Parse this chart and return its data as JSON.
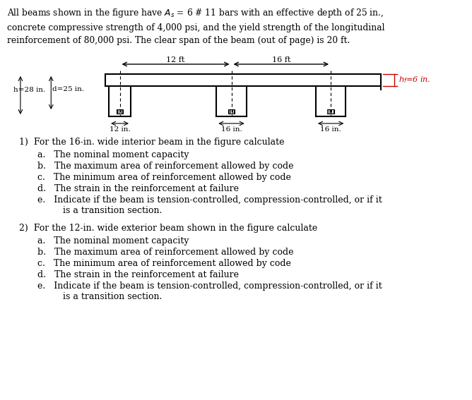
{
  "title_text": "All beams shown in the figure have $A_s$ = 6 # 11 bars with an effective depth of 25 in.,\nconcrete compressive strength of 4,000 psi, and the yield strength of the longitudinal\nreinforcement of 80,000 psi. The clear span of the beam (out of page) is 20 ft.",
  "bg_color": "#ffffff",
  "text_color": "#000000",
  "diagram": {
    "beam_color": "#000000",
    "rebar_color": "#555555"
  },
  "q1_text": "1)  For the 16-in. wide interior beam in the figure calculate",
  "q1_items": [
    "a.   The nominal moment capacity",
    "b.   The maximum area of reinforcement allowed by code",
    "c.   The minimum area of reinforcement allowed by code",
    "d.   The strain in the reinforcement at failure",
    "e.   Indicate if the beam is tension-controlled, compression-controlled, or if it\n         is a transition section."
  ],
  "q2_text": "2)  For the 12-in. wide exterior beam shown in the figure calculate",
  "q2_items": [
    "a.   The nominal moment capacity",
    "b.   The maximum area of reinforcement allowed by code",
    "c.   The minimum area of reinforcement allowed by code",
    "d.   The strain in the reinforcement at failure",
    "e.   Indicate if the beam is tension-controlled, compression-controlled, or if it\n         is a transition section."
  ]
}
